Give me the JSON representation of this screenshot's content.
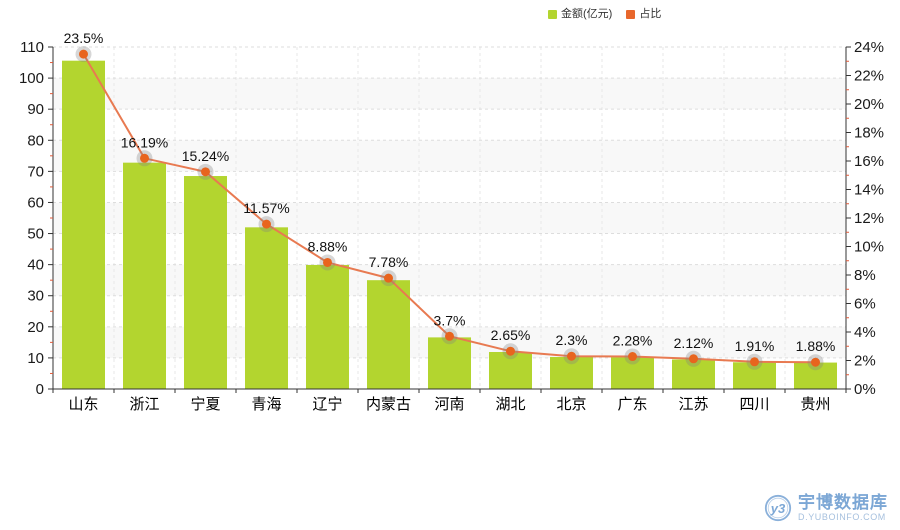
{
  "legend": {
    "items": [
      {
        "label": "金额(亿元)",
        "color": "#b3d52f"
      },
      {
        "label": "占比",
        "color": "#e8672c"
      }
    ]
  },
  "colors": {
    "bar": "#b3d52f",
    "line": "#e87a51",
    "dot": "#e8641e",
    "dot_halo": "rgba(130,130,130,0.32)",
    "axis": "#333333",
    "tick_label": "#1a1a1a",
    "minor_tick": "#e05a3a",
    "grid_h": "#dddddd",
    "grid_v": "#e7e7e7",
    "band": "#f5f5f5",
    "data_label": "#111111",
    "watermark_blue": "#7ca7d5"
  },
  "chart_data": {
    "type": "bar",
    "subtype": "bar+line combo, dual y-axis",
    "categories": [
      "山东",
      "浙江",
      "宁夏",
      "青海",
      "辽宁",
      "内蒙古",
      "河南",
      "湖北",
      "北京",
      "广东",
      "江苏",
      "四川",
      "贵州"
    ],
    "series": [
      {
        "name": "金额(亿元)",
        "type": "bar",
        "axis": "left",
        "values": [
          105.6,
          72.8,
          68.5,
          52.0,
          39.9,
          35.0,
          16.6,
          11.9,
          10.3,
          10.2,
          9.5,
          8.6,
          8.5
        ]
      },
      {
        "name": "占比",
        "type": "line",
        "axis": "right",
        "values": [
          23.5,
          16.19,
          15.24,
          11.57,
          8.88,
          7.78,
          3.7,
          2.65,
          2.3,
          2.28,
          2.12,
          1.91,
          1.88
        ],
        "point_labels": [
          "23.5%",
          "16.19%",
          "15.24%",
          "11.57%",
          "8.88%",
          "7.78%",
          "3.7%",
          "2.65%",
          "2.3%",
          "2.28%",
          "2.12%",
          "1.91%",
          "1.88%"
        ]
      }
    ],
    "left_axis": {
      "min": 0,
      "max": 110,
      "step": 10,
      "tick_labels": [
        "0",
        "10",
        "20",
        "30",
        "40",
        "50",
        "60",
        "70",
        "80",
        "90",
        "100",
        "110"
      ]
    },
    "right_axis": {
      "min": 0,
      "max": 24,
      "step": 2,
      "tick_labels": [
        "0%",
        "2%",
        "4%",
        "6%",
        "8%",
        "10%",
        "12%",
        "14%",
        "16%",
        "18%",
        "20%",
        "22%",
        "24%"
      ]
    },
    "title": "",
    "xlabel": "",
    "ylabel_left": "金额(亿元)",
    "ylabel_right": "占比",
    "legend_position": "top",
    "grid": "dashed, alternating horizontal split bands"
  },
  "watermark": {
    "logo_glyph": "y3",
    "title": "宇博数据库",
    "url": "D.YUBOINFO.COM"
  }
}
